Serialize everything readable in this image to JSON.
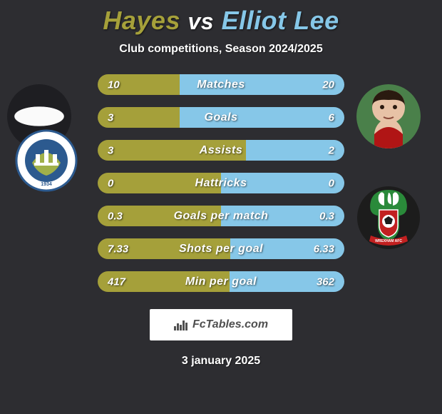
{
  "title": {
    "player1": "Hayes",
    "vs": "vs",
    "player2": "Elliot Lee",
    "player1_color": "#a5a03a",
    "player2_color": "#86c7e8"
  },
  "subtitle": "Club competitions, Season 2024/2025",
  "colors": {
    "background": "#2d2d31",
    "bar_left": "#a5a03a",
    "bar_right": "#86c7e8",
    "text": "#ffffff",
    "logo_box_bg": "#ffffff",
    "logo_text": "#505050"
  },
  "stats": [
    {
      "label": "Matches",
      "left_val": "10",
      "right_val": "20",
      "left_num": 10,
      "right_num": 20
    },
    {
      "label": "Goals",
      "left_val": "3",
      "right_val": "6",
      "left_num": 3,
      "right_num": 6
    },
    {
      "label": "Assists",
      "left_val": "3",
      "right_val": "2",
      "left_num": 3,
      "right_num": 2
    },
    {
      "label": "Hattricks",
      "left_val": "0",
      "right_val": "0",
      "left_num": 0,
      "right_num": 0
    },
    {
      "label": "Goals per match",
      "left_val": "0.3",
      "right_val": "0.3",
      "left_num": 0.3,
      "right_num": 0.3
    },
    {
      "label": "Shots per goal",
      "left_val": "7.33",
      "right_val": "6.33",
      "left_num": 7.33,
      "right_num": 6.33
    },
    {
      "label": "Min per goal",
      "left_val": "417",
      "right_val": "362",
      "left_num": 417,
      "right_num": 362
    }
  ],
  "logo_text": "FcTables.com",
  "date_text": "3 january 2025",
  "crest_left": {
    "outer_bg": "#ffffff",
    "border": "#2c5a8f",
    "inner_bg": "#2c5a8f",
    "text_color": "#2c5a8f",
    "accent": "#a0b04a",
    "year": "1934"
  },
  "crest_right": {
    "bg_dark": "#1c1c1c",
    "green": "#2a8a3a",
    "red": "#c22020",
    "white": "#ffffff",
    "ribbon_text": "WREXHAM AFC"
  }
}
